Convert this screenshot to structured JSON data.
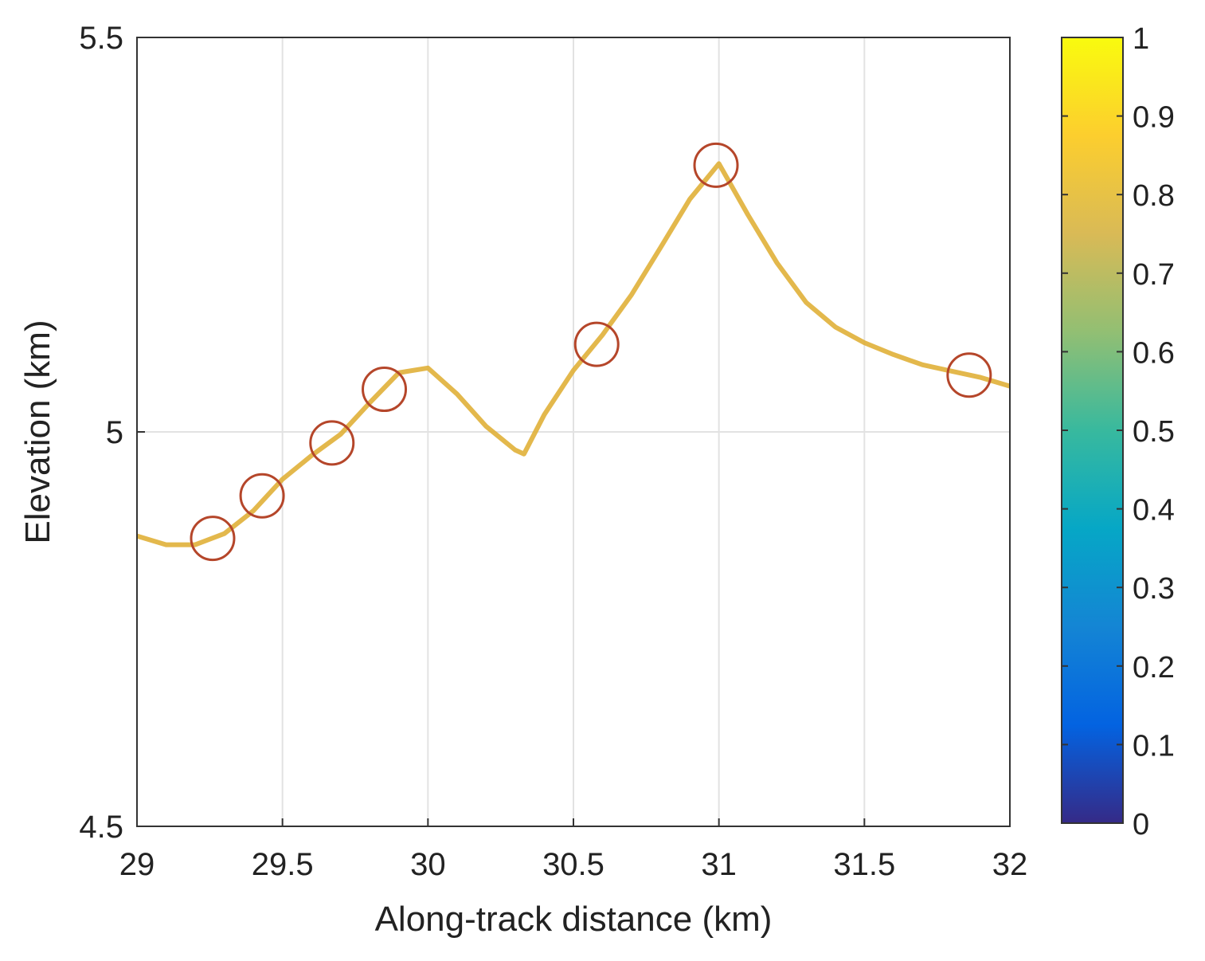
{
  "chart_data": {
    "type": "scatter",
    "xlabel": "Along-track distance (km)",
    "ylabel": "Elevation (km)",
    "xlim": [
      29,
      32
    ],
    "xticks": [
      29,
      29.5,
      30,
      30.5,
      31,
      31.5,
      32
    ],
    "ylim": [
      4.5,
      5.5
    ],
    "yticks": [
      4.5,
      5,
      5.5
    ],
    "grid": true,
    "signal": {
      "color": "#e0b038",
      "x": [
        29,
        29.1,
        29.2,
        29.3,
        29.4,
        29.5,
        29.6,
        29.7,
        29.8,
        29.9,
        30.0,
        30.1,
        30.2,
        30.3,
        30.33,
        30.4,
        30.5,
        30.6,
        30.7,
        30.8,
        30.9,
        31.0,
        31.1,
        31.2,
        31.3,
        31.4,
        31.5,
        31.6,
        31.7,
        31.8,
        31.9,
        32
      ],
      "values": [
        4.868,
        4.857,
        4.857,
        4.871,
        4.9,
        4.94,
        4.97,
        4.997,
        5.037,
        5.075,
        5.081,
        5.048,
        5.007,
        4.977,
        4.972,
        5.022,
        5.078,
        5.123,
        5.174,
        5.234,
        5.295,
        5.34,
        5.275,
        5.214,
        5.164,
        5.133,
        5.113,
        5.098,
        5.085,
        5.077,
        5.069,
        5.058
      ]
    },
    "points": {
      "color": "#b5462a",
      "x": [
        29.26,
        29.43,
        29.67,
        29.85,
        30.58,
        30.99,
        31.86
      ],
      "values": [
        4.865,
        4.919,
        4.986,
        5.054,
        5.111,
        5.338,
        5.072
      ]
    },
    "colorbar": {
      "colormap": "parula",
      "clim": [
        0,
        1
      ],
      "ticks": [
        0,
        0.1,
        0.2,
        0.3,
        0.4,
        0.5,
        0.6,
        0.7,
        0.8,
        0.9,
        1
      ]
    }
  }
}
